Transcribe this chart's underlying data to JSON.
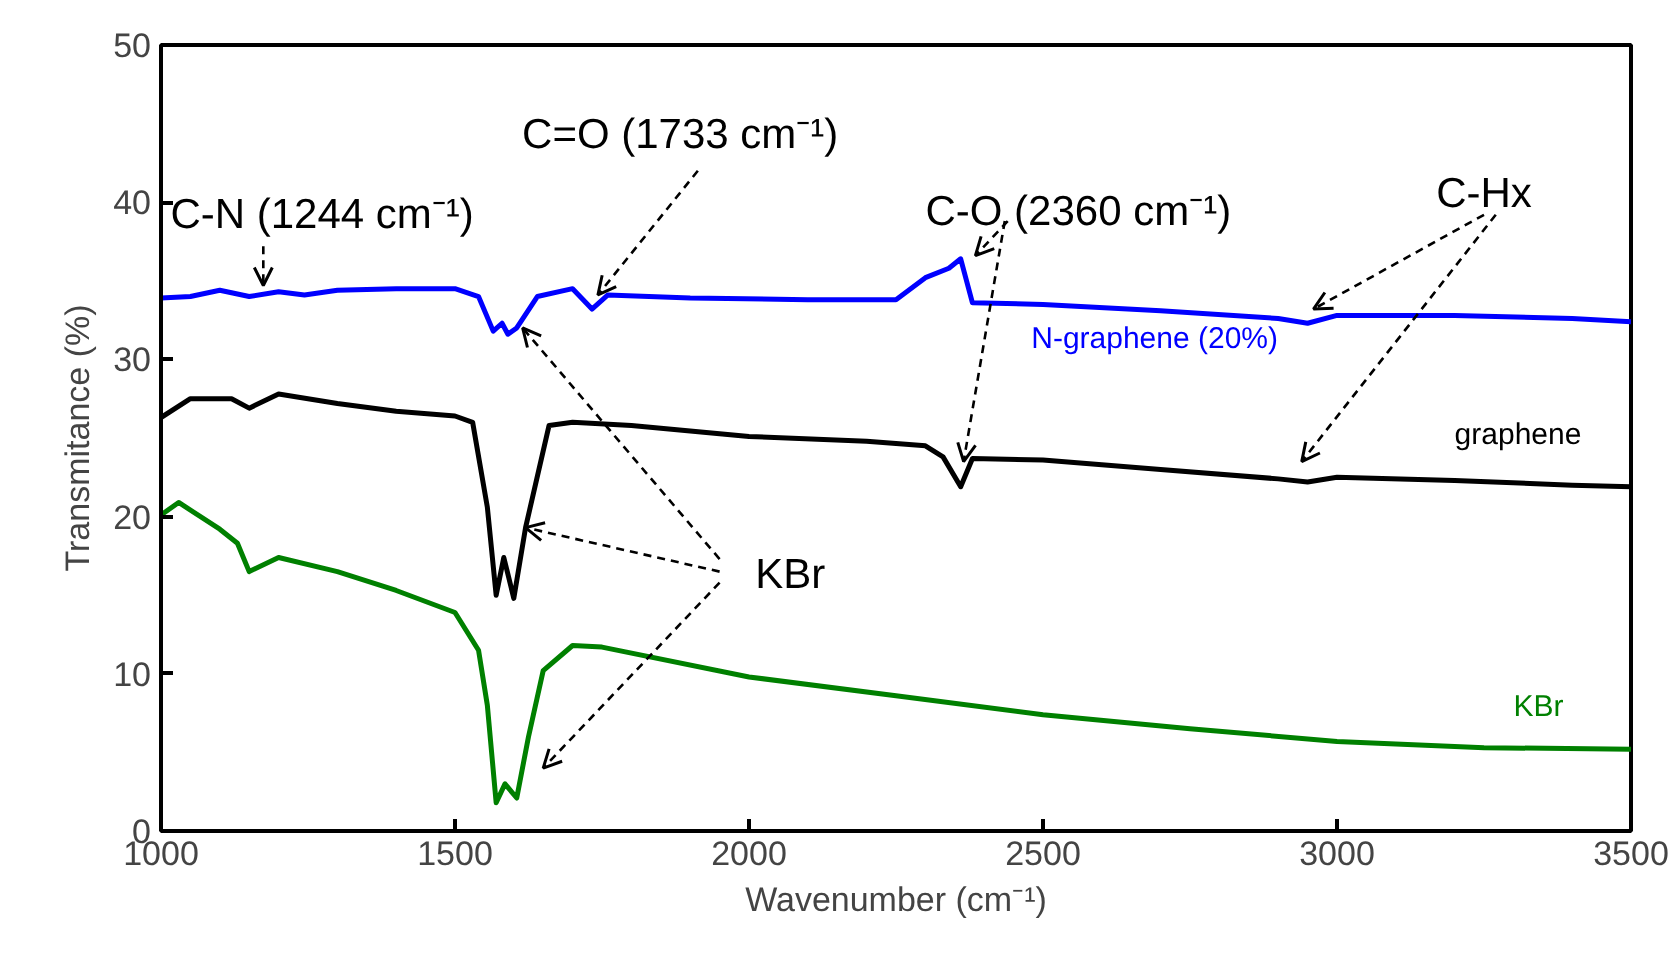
{
  "chart_data": {
    "type": "line",
    "xlabel": "Wavenumber (cm⁻¹)",
    "ylabel": "Transmitance (%)",
    "xlim": [
      1000,
      3500
    ],
    "ylim": [
      0,
      50
    ],
    "xticks": [
      1000,
      1500,
      2000,
      2500,
      3000,
      3500
    ],
    "yticks": [
      0,
      10,
      20,
      30,
      40,
      50
    ],
    "grid": false,
    "marker": "none",
    "line_style": "solid",
    "series": [
      {
        "name": "N-graphene (20%)",
        "color": "#0000ff",
        "x": [
          1000,
          1050,
          1100,
          1150,
          1200,
          1244,
          1300,
          1400,
          1500,
          1540,
          1565,
          1580,
          1590,
          1605,
          1640,
          1700,
          1733,
          1760,
          1900,
          2100,
          2250,
          2300,
          2340,
          2360,
          2380,
          2500,
          2700,
          2900,
          2950,
          3000,
          3200,
          3400,
          3500
        ],
        "values": [
          33.9,
          34.0,
          34.4,
          34.0,
          34.3,
          34.1,
          34.4,
          34.5,
          34.5,
          34.0,
          31.8,
          32.3,
          31.6,
          32.0,
          34.0,
          34.5,
          33.2,
          34.1,
          33.9,
          33.8,
          33.8,
          35.2,
          35.8,
          36.4,
          33.6,
          33.5,
          33.1,
          32.6,
          32.3,
          32.8,
          32.8,
          32.6,
          32.4
        ]
      },
      {
        "name": "graphene",
        "color": "#000000",
        "x": [
          1000,
          1050,
          1120,
          1150,
          1200,
          1300,
          1400,
          1500,
          1530,
          1555,
          1570,
          1583,
          1600,
          1620,
          1660,
          1700,
          1800,
          2000,
          2200,
          2300,
          2330,
          2360,
          2380,
          2500,
          2700,
          2900,
          2950,
          3000,
          3200,
          3400,
          3500
        ],
        "values": [
          26.3,
          27.5,
          27.5,
          26.9,
          27.8,
          27.2,
          26.7,
          26.4,
          26.0,
          20.6,
          15.0,
          17.4,
          14.8,
          19.3,
          25.8,
          26.0,
          25.8,
          25.1,
          24.8,
          24.5,
          23.8,
          21.9,
          23.7,
          23.6,
          23.0,
          22.4,
          22.2,
          22.5,
          22.3,
          22.0,
          21.9
        ]
      },
      {
        "name": "KBr",
        "color": "#008000",
        "x": [
          1000,
          1030,
          1100,
          1130,
          1150,
          1200,
          1300,
          1400,
          1500,
          1540,
          1555,
          1570,
          1585,
          1605,
          1625,
          1650,
          1700,
          1750,
          2000,
          2250,
          2500,
          2750,
          3000,
          3250,
          3500
        ],
        "values": [
          20.1,
          20.9,
          19.2,
          18.3,
          16.5,
          17.4,
          16.5,
          15.3,
          13.9,
          11.5,
          8.0,
          1.8,
          3.0,
          2.1,
          6.0,
          10.2,
          11.8,
          11.7,
          9.8,
          8.6,
          7.4,
          6.5,
          5.7,
          5.3,
          5.2
        ]
      }
    ],
    "annotations": [
      {
        "text": "C-N (1244 cm⁻¹)",
        "x": 1244,
        "y": 34.1
      },
      {
        "text": "C=O (1733 cm⁻¹)",
        "x": 1733,
        "y": 33.2
      },
      {
        "text": "C-O (2360 cm⁻¹)",
        "x": 2360,
        "y": 36.4
      },
      {
        "text": "C-Hx",
        "x": 2950,
        "y": 32.3
      },
      {
        "text": "KBr",
        "x": 1620,
        "y": 19.3
      }
    ]
  }
}
